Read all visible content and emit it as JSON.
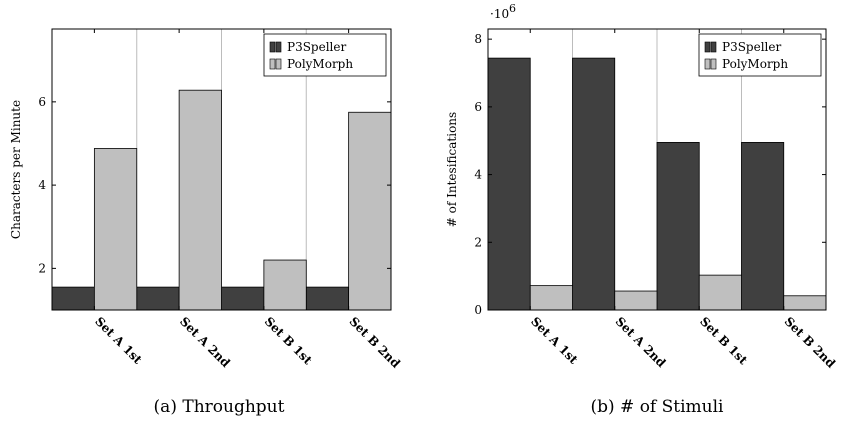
{
  "colors": {
    "p3speller": "#404040",
    "polymorph": "#bfbfbf",
    "grid": "#bcbcbc",
    "axis": "#000000"
  },
  "chart_data": [
    {
      "type": "bar",
      "caption": "(a) Throughput",
      "categories": [
        "Set A 1st",
        "Set A 2nd",
        "Set B 1st",
        "Set B 2nd"
      ],
      "series": [
        {
          "name": "P3Speller",
          "values": [
            1.55,
            1.55,
            1.55,
            1.55
          ]
        },
        {
          "name": "PolyMorph",
          "values": [
            4.88,
            6.28,
            2.2,
            5.75
          ]
        }
      ],
      "xlabel": "",
      "ylabel": "Characters per Minute",
      "ylim": [
        1.0,
        7.75
      ],
      "yticks": [
        2,
        4,
        6
      ],
      "ytick_labels": [
        "2",
        "4",
        "6"
      ],
      "multiplier_label": "",
      "grid": "vertical",
      "legend_position": "top-right"
    },
    {
      "type": "bar",
      "caption": "(b) # of Stimuli",
      "categories": [
        "Set A 1st",
        "Set A 2nd",
        "Set B 1st",
        "Set B 2nd"
      ],
      "series": [
        {
          "name": "P3Speller",
          "values": [
            7440000,
            7440000,
            4950000,
            4950000
          ]
        },
        {
          "name": "PolyMorph",
          "values": [
            720000,
            560000,
            1030000,
            420000
          ]
        }
      ],
      "xlabel": "",
      "ylabel": "# of Intesifications",
      "ylim": [
        0,
        8300000
      ],
      "yticks": [
        0,
        2000000,
        4000000,
        6000000,
        8000000
      ],
      "ytick_labels": [
        "0",
        "2",
        "4",
        "6",
        "8"
      ],
      "multiplier_label": "·10",
      "multiplier_exponent": "6",
      "grid": "vertical",
      "legend_position": "top-right"
    }
  ]
}
